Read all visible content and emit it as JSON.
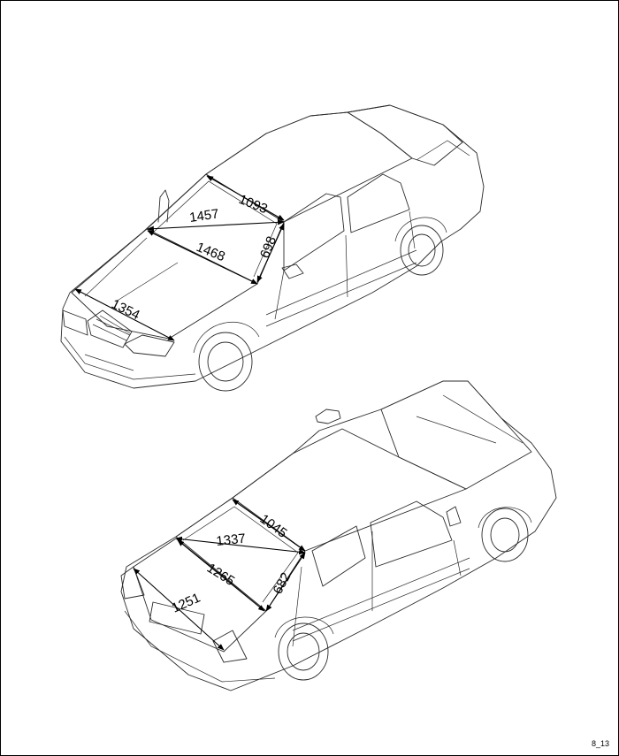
{
  "front_view": {
    "dimensions": [
      "1093",
      "1457",
      "1468",
      "698",
      "1354"
    ]
  },
  "rear_view": {
    "dimensions": [
      "1045",
      "1337",
      "1265",
      "682",
      "1251"
    ]
  },
  "figure_id": "8_13"
}
